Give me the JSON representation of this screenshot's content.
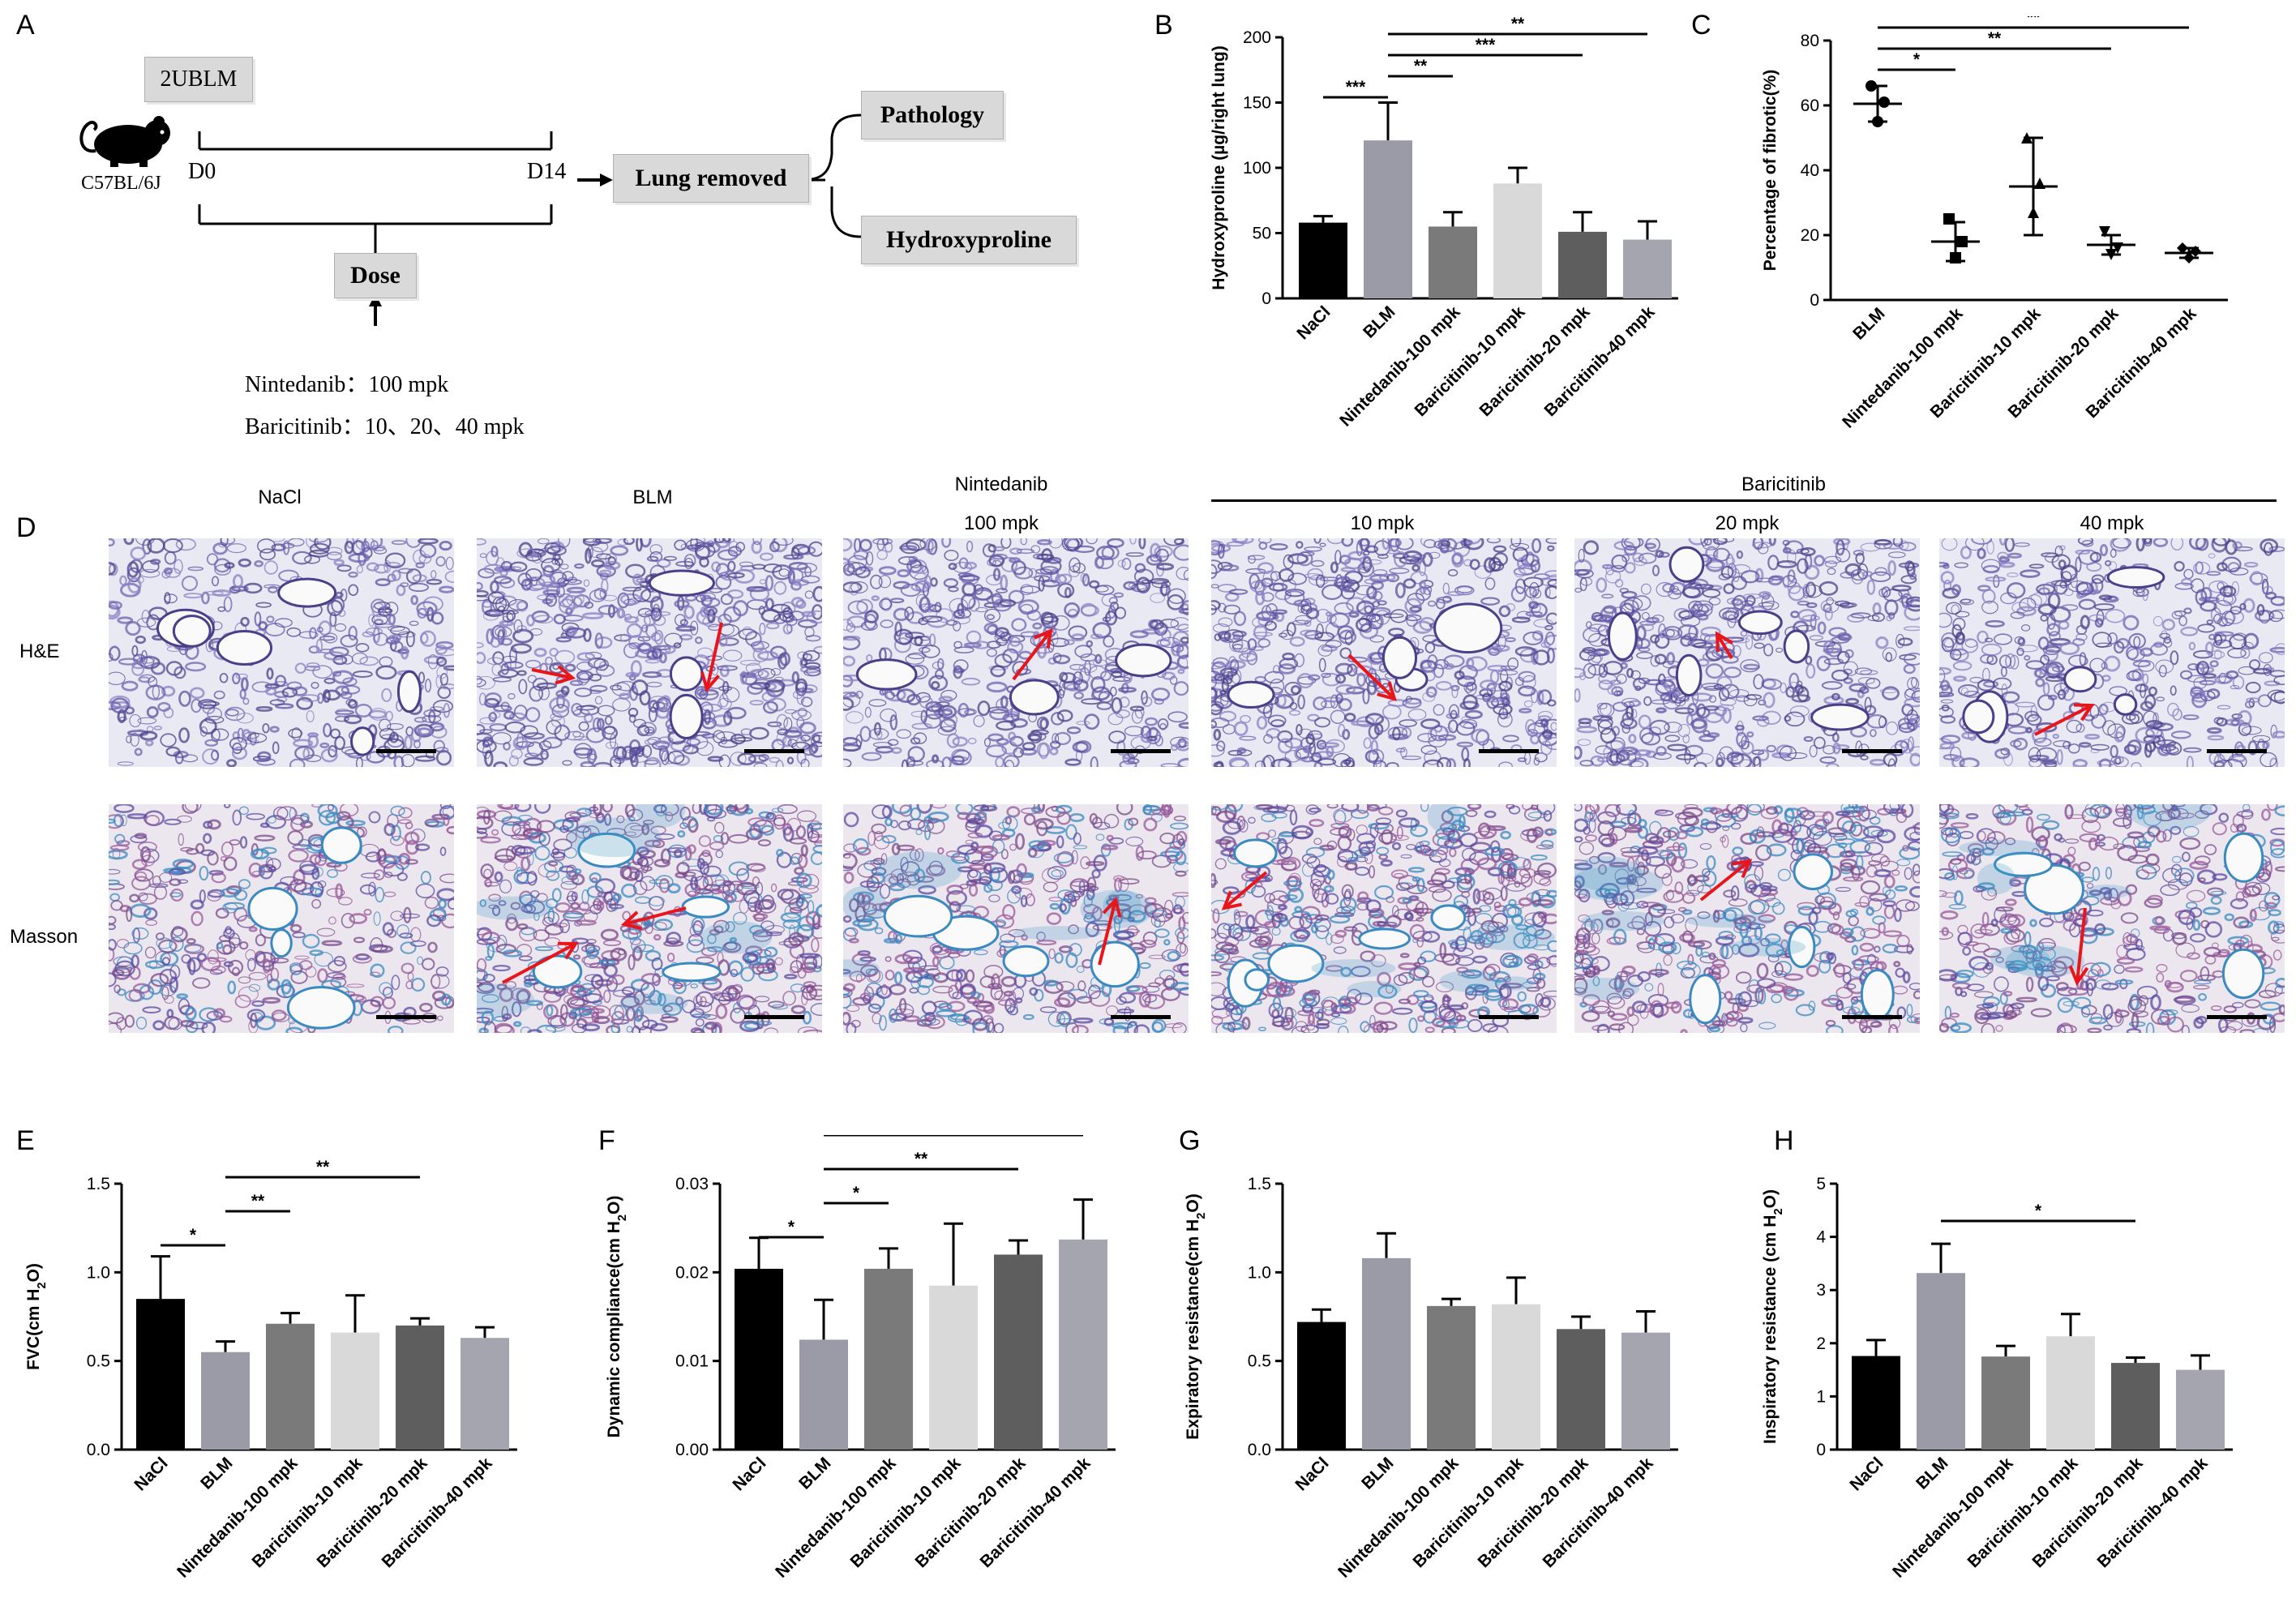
{
  "panel_letters": [
    "A",
    "B",
    "C",
    "D",
    "E",
    "F",
    "G",
    "H"
  ],
  "panelA": {
    "model": "2UBLM",
    "strain": "C57BL/6J",
    "d0": "D0",
    "d14": "D14",
    "lung": "Lung removed",
    "pathology": "Pathology",
    "hyp": "Hydroxyproline",
    "dose": "Dose",
    "nint": "Nintedanib：100 mpk",
    "bari": "Baricitinib：10、20、40 mpk"
  },
  "panelD": {
    "col_headers": [
      "NaCl",
      "BLM",
      "Nintedanib",
      "100 mpk",
      "Baricitinib",
      "10 mpk",
      "20 mpk",
      "40 mpk"
    ],
    "rows": [
      "H&E",
      "Masson"
    ]
  },
  "chart_data": [
    {
      "id": "B",
      "type": "bar",
      "ylabel": "Hydroxyproline (µg/right lung)",
      "categories": [
        "NaCl",
        "BLM",
        "Nintedanib-100 mpk",
        "Baricitinib-10 mpk",
        "Baricitinib-20 mpk",
        "Baricitinib-40 mpk"
      ],
      "values": [
        58,
        121,
        55,
        88,
        51,
        45
      ],
      "errors": [
        5,
        29,
        11,
        12,
        15,
        14
      ],
      "colors": [
        "#000000",
        "#9b9ba8",
        "#7a7a7a",
        "#d9d9d9",
        "#5e5e5e",
        "#a5a5b0"
      ],
      "ylim": [
        0,
        200
      ],
      "yticks": [
        0,
        50,
        100,
        150,
        200
      ],
      "sig": [
        {
          "a": 0,
          "b": 1,
          "label": "***"
        },
        {
          "a": 1,
          "b": 2,
          "label": "**"
        },
        {
          "a": 1,
          "b": 4,
          "label": "***"
        },
        {
          "a": 1,
          "b": 5,
          "label": "**"
        }
      ]
    },
    {
      "id": "C",
      "type": "scatter",
      "ylabel": "Percentage of fibrotic(%)",
      "categories": [
        "BLM",
        "Nintedanib-100 mpk",
        "Baricitinib-10 mpk",
        "Baricitinib-20 mpk",
        "Baricitinib-40 mpk"
      ],
      "means": [
        60.5,
        18,
        35,
        17,
        14.5
      ],
      "errors": [
        5.5,
        6,
        15,
        3,
        1.5
      ],
      "points": [
        [
          66,
          55,
          61
        ],
        [
          25,
          13,
          18
        ],
        [
          50,
          27,
          36
        ],
        [
          21,
          14,
          16
        ],
        [
          16,
          13,
          15
        ]
      ],
      "markers": [
        "circle",
        "square",
        "triangle",
        "triangle-down",
        "diamond"
      ],
      "ylim": [
        0,
        80
      ],
      "yticks": [
        0,
        20,
        40,
        60,
        80
      ],
      "sig": [
        {
          "a": 0,
          "b": 1,
          "label": "*"
        },
        {
          "a": 0,
          "b": 3,
          "label": "**"
        },
        {
          "a": 0,
          "b": 4,
          "label": "**"
        }
      ]
    },
    {
      "id": "E",
      "type": "bar",
      "ylabel": "FVC(cm H2O)",
      "categories": [
        "NaCl",
        "BLM",
        "Nintedanib-100 mpk",
        "Baricitinib-10 mpk",
        "Baricitinib-20 mpk",
        "Baricitinib-40 mpk"
      ],
      "values": [
        0.85,
        0.55,
        0.71,
        0.66,
        0.7,
        0.63
      ],
      "errors": [
        0.24,
        0.06,
        0.06,
        0.21,
        0.04,
        0.06
      ],
      "colors": [
        "#000000",
        "#9b9ba8",
        "#7a7a7a",
        "#d9d9d9",
        "#5e5e5e",
        "#a5a5b0"
      ],
      "ylim": [
        0,
        1.5
      ],
      "yticks": [
        "0.0",
        "0.5",
        "1.0",
        "1.5"
      ],
      "sig": [
        {
          "a": 0,
          "b": 1,
          "label": "*"
        },
        {
          "a": 1,
          "b": 2,
          "label": "**"
        },
        {
          "a": 1,
          "b": 4,
          "label": "**"
        }
      ]
    },
    {
      "id": "F",
      "type": "bar",
      "ylabel": "Dynamic compliance(cm H2O)",
      "categories": [
        "NaCl",
        "BLM",
        "Nintedanib-100 mpk",
        "Baricitinib-10 mpk",
        "Baricitinib-20 mpk",
        "Baricitinib-40 mpk"
      ],
      "values": [
        0.0204,
        0.0124,
        0.0204,
        0.0185,
        0.022,
        0.0237
      ],
      "errors": [
        0.0035,
        0.0045,
        0.0023,
        0.007,
        0.0016,
        0.0045
      ],
      "colors": [
        "#000000",
        "#9b9ba8",
        "#7a7a7a",
        "#d9d9d9",
        "#5e5e5e",
        "#a5a5b0"
      ],
      "ylim": [
        0,
        0.03
      ],
      "yticks": [
        "0.00",
        "0.01",
        "0.02",
        "0.03"
      ],
      "sig": [
        {
          "a": 0,
          "b": 1,
          "label": "*"
        },
        {
          "a": 1,
          "b": 2,
          "label": "*"
        },
        {
          "a": 1,
          "b": 4,
          "label": "**"
        },
        {
          "a": 1,
          "b": 5,
          "label": "*"
        }
      ]
    },
    {
      "id": "G",
      "type": "bar",
      "ylabel": "Expiratory resistance(cm H2O)",
      "categories": [
        "NaCl",
        "BLM",
        "Nintedanib-100 mpk",
        "Baricitinib-10 mpk",
        "Baricitinib-20 mpk",
        "Baricitinib-40 mpk"
      ],
      "values": [
        0.72,
        1.08,
        0.81,
        0.82,
        0.68,
        0.66
      ],
      "errors": [
        0.07,
        0.14,
        0.04,
        0.15,
        0.07,
        0.12
      ],
      "colors": [
        "#000000",
        "#9b9ba8",
        "#7a7a7a",
        "#d9d9d9",
        "#5e5e5e",
        "#a5a5b0"
      ],
      "ylim": [
        0,
        1.5
      ],
      "yticks": [
        "0.0",
        "0.5",
        "1.0",
        "1.5"
      ],
      "sig": []
    },
    {
      "id": "H",
      "type": "bar",
      "ylabel": "Inspiratory resistance (cm H2O)",
      "categories": [
        "NaCl",
        "BLM",
        "Nintedanib-100 mpk",
        "Baricitinib-10 mpk",
        "Baricitinib-20 mpk",
        "Baricitinib-40 mpk"
      ],
      "values": [
        1.76,
        3.32,
        1.75,
        2.13,
        1.63,
        1.5
      ],
      "errors": [
        0.3,
        0.55,
        0.2,
        0.42,
        0.1,
        0.27
      ],
      "colors": [
        "#000000",
        "#9b9ba8",
        "#7a7a7a",
        "#d9d9d9",
        "#5e5e5e",
        "#a5a5b0"
      ],
      "ylim": [
        0,
        5
      ],
      "yticks": [
        0,
        1,
        2,
        3,
        4,
        5
      ],
      "sig": [
        {
          "a": 1,
          "b": 4,
          "label": "*"
        }
      ]
    }
  ]
}
